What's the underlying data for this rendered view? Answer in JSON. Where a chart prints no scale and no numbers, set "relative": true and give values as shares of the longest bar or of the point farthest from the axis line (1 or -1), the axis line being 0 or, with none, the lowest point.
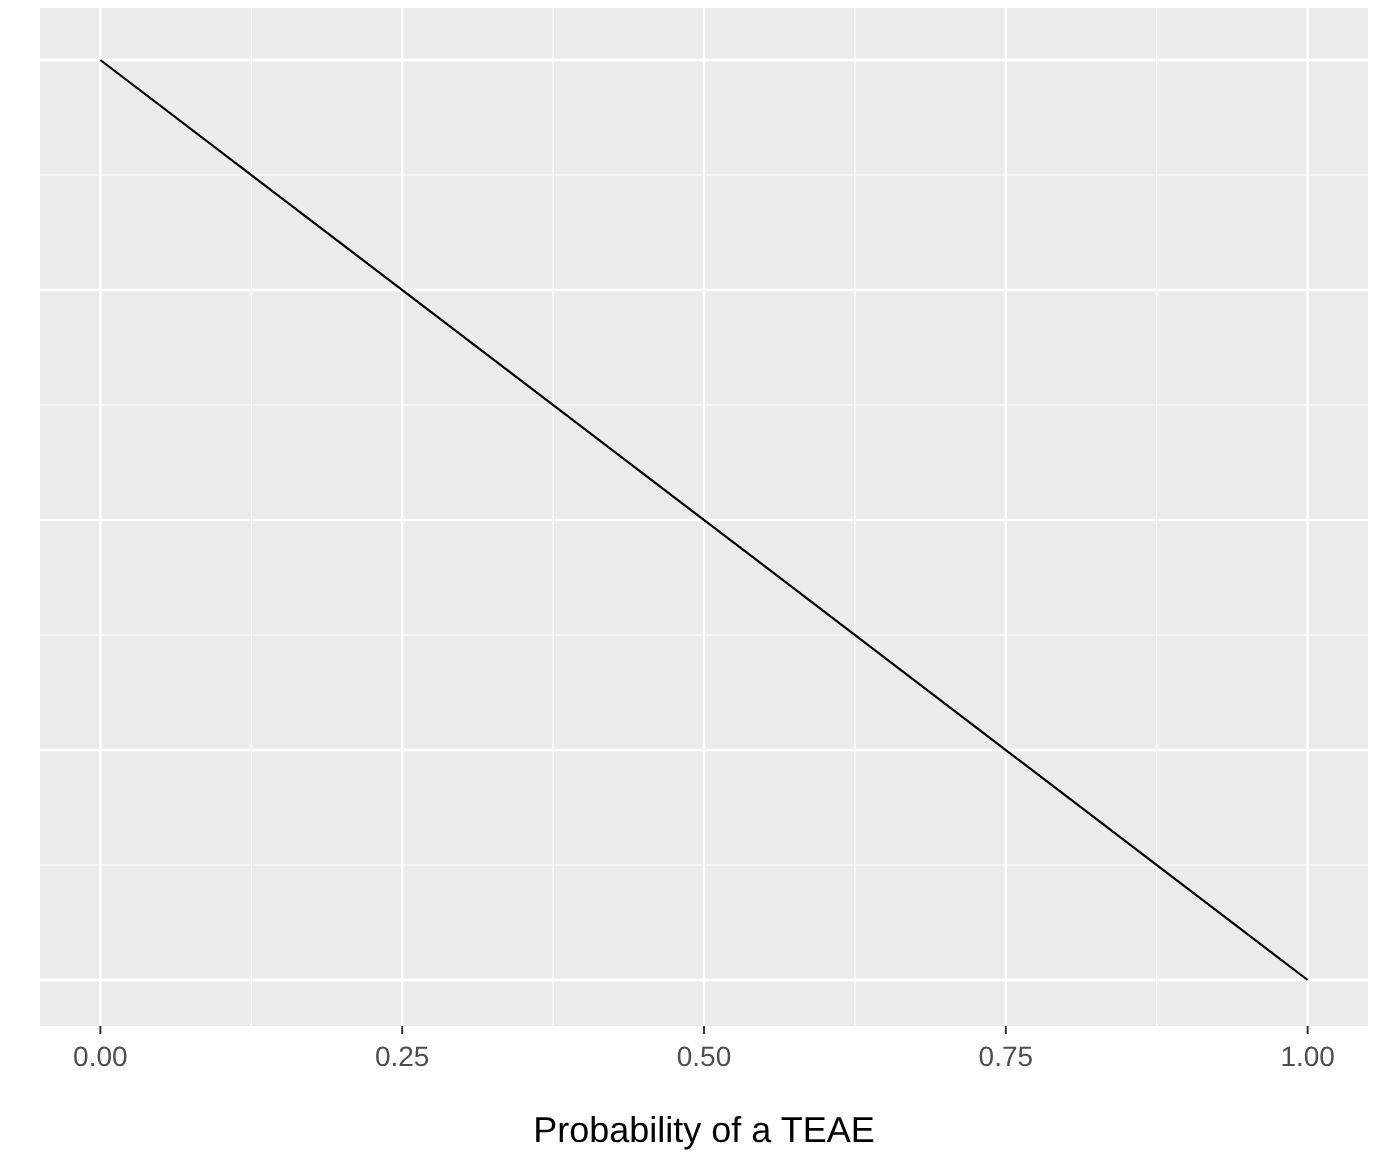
{
  "chart_data": {
    "type": "line",
    "xlabel": "Probability of a TEAE",
    "relative": true,
    "x": [
      0,
      1
    ],
    "series": [
      {
        "color": "#000000",
        "values": [
          1,
          0
        ]
      }
    ],
    "xlim": [
      -0.05,
      1.05
    ],
    "xticks": [
      {
        "value": 0,
        "label": "0.00"
      },
      {
        "value": 0.25,
        "label": "0.25"
      },
      {
        "value": 0.5,
        "label": "0.50"
      },
      {
        "value": 0.75,
        "label": "0.75"
      },
      {
        "value": 1,
        "label": "1.00"
      }
    ],
    "grid": true,
    "tick_labels": "x"
  }
}
